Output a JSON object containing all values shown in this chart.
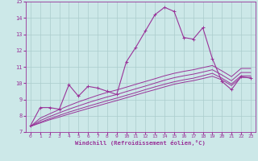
{
  "bg_color": "#cce8e8",
  "line_color": "#993399",
  "grid_color": "#aacccc",
  "xlabel": "Windchill (Refroidissement éolien,°C)",
  "xlim": [
    -0.5,
    23.5
  ],
  "ylim": [
    7,
    15
  ],
  "xticks": [
    0,
    1,
    2,
    3,
    4,
    5,
    6,
    7,
    8,
    9,
    10,
    11,
    12,
    13,
    14,
    15,
    16,
    17,
    18,
    19,
    20,
    21,
    22,
    23
  ],
  "yticks": [
    7,
    8,
    9,
    10,
    11,
    12,
    13,
    14,
    15
  ],
  "main_series": [
    7.4,
    8.5,
    8.5,
    8.4,
    9.9,
    9.2,
    9.8,
    9.7,
    9.5,
    9.3,
    11.3,
    12.2,
    13.2,
    14.2,
    14.65,
    14.4,
    12.8,
    12.7,
    13.4,
    11.5,
    10.1,
    9.6,
    10.4,
    10.3
  ],
  "reg_lines": [
    [
      7.35,
      7.55,
      7.75,
      7.92,
      8.1,
      8.27,
      8.44,
      8.6,
      8.77,
      8.93,
      9.1,
      9.27,
      9.44,
      9.6,
      9.77,
      9.93,
      10.05,
      10.15,
      10.28,
      10.42,
      10.2,
      9.85,
      10.35,
      10.35
    ],
    [
      7.35,
      7.6,
      7.82,
      8.02,
      8.22,
      8.4,
      8.58,
      8.75,
      8.92,
      9.08,
      9.25,
      9.42,
      9.6,
      9.77,
      9.93,
      10.08,
      10.2,
      10.3,
      10.45,
      10.6,
      10.3,
      9.95,
      10.45,
      10.45
    ],
    [
      7.35,
      7.7,
      7.95,
      8.18,
      8.4,
      8.6,
      8.8,
      8.98,
      9.15,
      9.3,
      9.48,
      9.65,
      9.82,
      10.0,
      10.18,
      10.33,
      10.45,
      10.55,
      10.68,
      10.82,
      10.5,
      10.15,
      10.65,
      10.65
    ],
    [
      7.35,
      7.85,
      8.12,
      8.38,
      8.62,
      8.85,
      9.05,
      9.25,
      9.43,
      9.58,
      9.75,
      9.93,
      10.1,
      10.27,
      10.45,
      10.6,
      10.72,
      10.82,
      10.95,
      11.08,
      10.75,
      10.4,
      10.9,
      10.9
    ]
  ]
}
